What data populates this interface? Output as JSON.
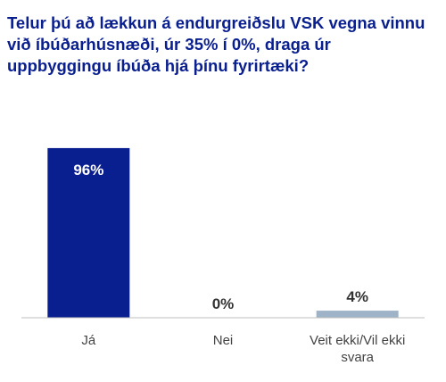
{
  "chart_data": {
    "type": "bar",
    "title": "Telur þú að lækkun á endurgreiðslu VSK vegna vinnu við íbúðarhúsnæði, úr 35% í 0%, draga úr uppbyggingu íbúða hjá þínu fyrirtæki?",
    "categories": [
      "Já",
      "Nei",
      "Veit ekki/Vil ekki svara"
    ],
    "category_lines": [
      [
        "Já"
      ],
      [
        "Nei"
      ],
      [
        "Veit ekki/Vil ekki",
        "svara"
      ]
    ],
    "values": [
      96,
      0,
      4
    ],
    "data_labels": [
      "96%",
      "0%",
      "4%"
    ],
    "bar_colors": [
      "#0a1f8f",
      "#0a1f8f",
      "#9fb3c8"
    ],
    "label_colors": [
      "#ffffff",
      "#333333",
      "#333333"
    ],
    "ylim": [
      0,
      100
    ],
    "grid": false,
    "legend": "none",
    "xlabel": "",
    "ylabel": ""
  }
}
